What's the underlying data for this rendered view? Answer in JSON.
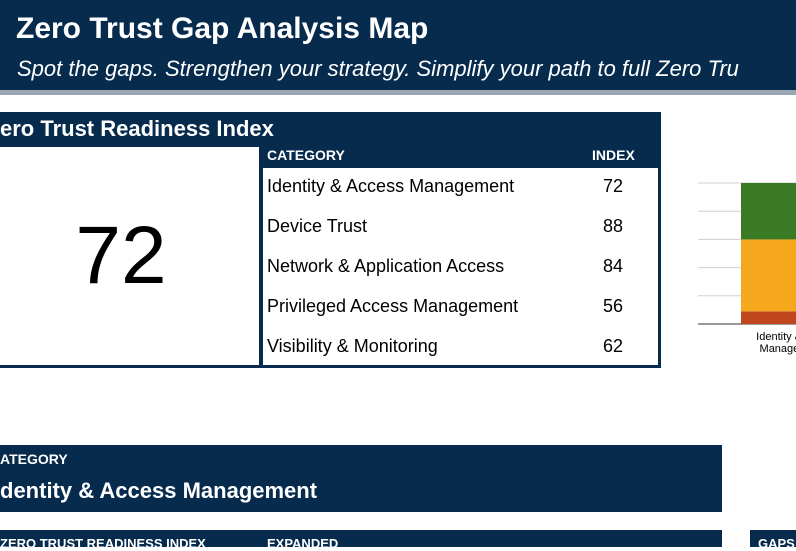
{
  "header": {
    "title": "Zero Trust Gap Analysis Map",
    "subtitle": "Spot the gaps. Strengthen your strategy. Simplify your path to full Zero Tru"
  },
  "readiness": {
    "title": "ero Trust Readiness Index",
    "score": "72",
    "table": {
      "columns": [
        "CATEGORY",
        "INDEX"
      ],
      "rows": [
        [
          "Identity & Access Management",
          "72"
        ],
        [
          "Device Trust",
          "88"
        ],
        [
          "Network & Application Access",
          "84"
        ],
        [
          "Privileged Access Management",
          "56"
        ],
        [
          "Visibility & Monitoring",
          "62"
        ]
      ]
    }
  },
  "chart_data": {
    "type": "stacked-bar",
    "categories": [
      [
        "Identity & A",
        "Managem"
      ]
    ],
    "series": [
      {
        "color": "#c0461e",
        "values": [
          9
        ]
      },
      {
        "color": "#f5a81c",
        "values": [
          51
        ]
      },
      {
        "color": "#3b7a24",
        "values": [
          40
        ]
      }
    ],
    "ylim": [
      0,
      100
    ],
    "yticks": [
      0,
      20,
      40,
      60,
      80,
      100
    ],
    "grid": true
  },
  "detail": {
    "label": "ATEGORY",
    "value": "dentity & Access Management",
    "columns": [
      "ZERO TRUST READINESS INDEX",
      "EXPANDED"
    ],
    "side": "GAPS"
  }
}
